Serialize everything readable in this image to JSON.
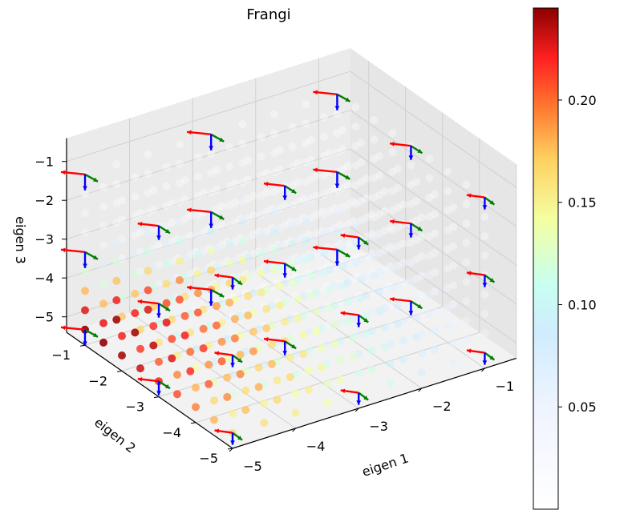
{
  "chart_data": {
    "type": "scatter",
    "projection": "3d",
    "title": "Frangi",
    "xlabel": "eigen 1",
    "ylabel": "eigen 2",
    "zlabel": "eigen 3",
    "xlim": [
      -5,
      -0.5
    ],
    "ylim": [
      -5,
      -0.5
    ],
    "zlim": [
      -5.4,
      -0.4
    ],
    "xticks": [
      "−5",
      "−4",
      "−3",
      "−2",
      "−1"
    ],
    "yticks": [
      "−1",
      "−2",
      "−3",
      "−4",
      "−5"
    ],
    "zticks": [
      "−1",
      "−2",
      "−3",
      "−4",
      "−5"
    ],
    "grid": true,
    "colormap": "jet-like (white → blue → cyan → yellow → red → dark red)",
    "colorbar": {
      "min": 0.0,
      "max": 0.245,
      "ticks": [
        "0.05",
        "0.10",
        "0.15",
        "0.20"
      ],
      "tick_values": [
        0.05,
        0.1,
        0.15,
        0.2
      ]
    },
    "points_grid": {
      "note": "Points sampled on a regular 3D grid; color encodes the Frangi response",
      "axis_values": [
        -5,
        -4.5,
        -4,
        -3.5,
        -3,
        -2.5,
        -2,
        -1.5,
        -1
      ],
      "highest_response_near": "eigen 1 ≈ -5, eigen 2 ≈ -1, eigen 3 ≈ -5 (value ≈ 0.245)"
    },
    "arrow_glyphs": {
      "note": "Eigenvector triads drawn at a coarse grid of positions",
      "colors": {
        "eigen1": "#ff0000",
        "eigen2": "#008000",
        "eigen3": "#0000ff"
      },
      "positions_axis_values": [
        -5,
        -3,
        -1
      ]
    }
  }
}
